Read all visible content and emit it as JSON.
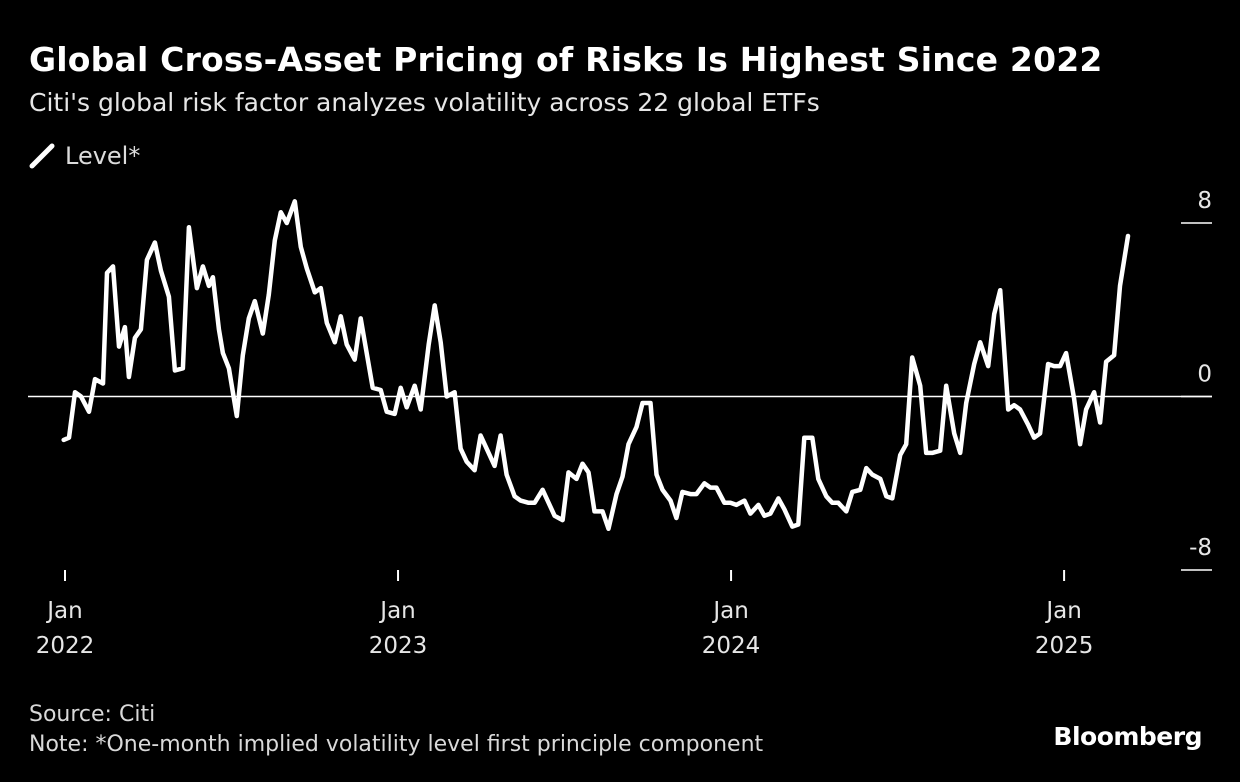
{
  "title": "Global Cross-Asset Pricing of Risks Is Highest Since 2022",
  "subtitle": "Citi's global risk factor analyzes volatility across 22 global ETFs",
  "legend": {
    "label": "Level*"
  },
  "source": "Source: Citi",
  "note": "Note: *One-month implied volatility level first principle component",
  "brand": "Bloomberg",
  "colors": {
    "background": "#000000",
    "line": "#ffffff",
    "text": "#ffffff",
    "muted": "#d9d9d9"
  },
  "chart_data": {
    "type": "line",
    "title": "Global Cross-Asset Pricing of Risks Is Highest Since 2022",
    "xlabel": "",
    "ylabel": "",
    "ylim": [
      -8,
      8
    ],
    "yticks": [
      {
        "value": 8,
        "label": "8"
      },
      {
        "value": 0,
        "label": "0"
      },
      {
        "value": -8,
        "label": "-8"
      }
    ],
    "xticks": [
      {
        "value": 2022.0,
        "month": "Jan",
        "year": "2022"
      },
      {
        "value": 2023.0,
        "month": "Jan",
        "year": "2023"
      },
      {
        "value": 2024.0,
        "month": "Jan",
        "year": "2024"
      },
      {
        "value": 2025.0,
        "month": "Jan",
        "year": "2025"
      }
    ],
    "xlim": [
      2022.0,
      2025.333
    ],
    "zero_line": true,
    "legend": "top-left",
    "series": [
      {
        "name": "Level*",
        "x": [
          2021.996,
          2022.012,
          2022.03,
          2022.048,
          2022.072,
          2022.09,
          2022.114,
          2022.126,
          2022.144,
          2022.162,
          2022.18,
          2022.192,
          2022.21,
          2022.228,
          2022.246,
          2022.27,
          2022.288,
          2022.312,
          2022.33,
          2022.354,
          2022.372,
          2022.396,
          2022.414,
          2022.432,
          2022.444,
          2022.462,
          2022.474,
          2022.492,
          2022.516,
          2022.534,
          2022.552,
          2022.57,
          2022.594,
          2022.612,
          2022.63,
          2022.648,
          2022.666,
          2022.69,
          2022.708,
          2022.726,
          2022.75,
          2022.768,
          2022.786,
          2022.81,
          2022.828,
          2022.846,
          2022.87,
          2022.888,
          2022.906,
          2022.924,
          2022.948,
          2022.966,
          2022.99,
          2023.008,
          2023.026,
          2023.05,
          2023.068,
          2023.092,
          2023.11,
          2023.128,
          2023.146,
          2023.17,
          2023.188,
          2023.206,
          2023.23,
          2023.248,
          2023.266,
          2023.29,
          2023.308,
          2023.326,
          2023.35,
          2023.368,
          2023.392,
          2023.41,
          2023.434,
          2023.452,
          2023.47,
          2023.494,
          2023.512,
          2023.536,
          2023.554,
          2023.572,
          2023.59,
          2023.614,
          2023.632,
          2023.656,
          2023.674,
          2023.692,
          2023.716,
          2023.734,
          2023.758,
          2023.776,
          2023.794,
          2023.818,
          2023.836,
          2023.854,
          2023.878,
          2023.896,
          2023.92,
          2023.938,
          2023.956,
          2023.98,
          2023.998,
          2024.016,
          2024.04,
          2024.058,
          2024.082,
          2024.1,
          2024.118,
          2024.142,
          2024.16,
          2024.184,
          2024.202,
          2024.22,
          2024.244,
          2024.262,
          2024.286,
          2024.304,
          2024.322,
          2024.346,
          2024.364,
          2024.388,
          2024.406,
          2024.424,
          2024.448,
          2024.466,
          2024.484,
          2024.508,
          2024.526,
          2024.544,
          2024.568,
          2024.586,
          2024.604,
          2024.628,
          2024.646,
          2024.67,
          2024.688,
          2024.706,
          2024.73,
          2024.748,
          2024.772,
          2024.79,
          2024.808,
          2024.832,
          2024.85,
          2024.868,
          2024.892,
          2024.91,
          2024.928,
          2024.952,
          2024.97,
          2024.988,
          2025.006,
          2025.03,
          2025.048,
          2025.066,
          2025.09,
          2025.108,
          2025.126,
          2025.15,
          2025.168,
          2025.192
        ],
        "y": [
          -2.0,
          -1.9,
          0.2,
          0.0,
          -0.7,
          0.8,
          0.6,
          5.7,
          6.0,
          2.3,
          3.2,
          0.9,
          2.7,
          3.1,
          6.3,
          7.1,
          5.8,
          4.6,
          1.2,
          1.3,
          7.8,
          5.0,
          6.0,
          5.1,
          5.5,
          3.1,
          2.0,
          1.3,
          -0.9,
          1.9,
          3.6,
          4.4,
          2.9,
          4.7,
          7.2,
          8.5,
          8.0,
          9.0,
          6.9,
          5.9,
          4.8,
          5.0,
          3.4,
          2.5,
          3.7,
          2.4,
          1.7,
          3.6,
          2.0,
          0.4,
          0.3,
          -0.7,
          -0.8,
          0.4,
          -0.5,
          0.5,
          -0.6,
          2.4,
          4.2,
          2.5,
          0.0,
          0.2,
          -2.4,
          -3.0,
          -3.4,
          -1.8,
          -2.4,
          -3.2,
          -1.8,
          -3.6,
          -4.6,
          -4.8,
          -4.9,
          -4.9,
          -4.3,
          -4.9,
          -5.5,
          -5.7,
          -3.5,
          -3.8,
          -3.1,
          -3.5,
          -5.3,
          -5.3,
          -6.1,
          -4.5,
          -3.7,
          -2.2,
          -1.4,
          -0.3,
          -0.3,
          -3.6,
          -4.3,
          -4.8,
          -5.6,
          -4.4,
          -4.5,
          -4.5,
          -4.0,
          -4.2,
          -4.2,
          -4.9,
          -4.9,
          -5.0,
          -4.8,
          -5.4,
          -5.0,
          -5.5,
          -5.4,
          -4.7,
          -5.2,
          -6.0,
          -5.9,
          -1.9,
          -1.9,
          -3.8,
          -4.6,
          -4.9,
          -4.9,
          -5.3,
          -4.4,
          -4.3,
          -3.3,
          -3.6,
          -3.8,
          -4.6,
          -4.7,
          -2.7,
          -2.2,
          1.8,
          0.5,
          -2.6,
          -2.6,
          -2.5,
          0.5,
          -1.7,
          -2.6,
          -0.3,
          1.5,
          2.5,
          1.4,
          3.8,
          4.9,
          -0.6,
          -0.4,
          -0.6,
          -1.3,
          -1.9,
          -1.7,
          1.5,
          1.4,
          1.4,
          2.0,
          -0.1,
          -2.2,
          -0.6,
          0.2,
          -1.2,
          1.6,
          1.9,
          5.1,
          7.4
        ]
      }
    ]
  }
}
